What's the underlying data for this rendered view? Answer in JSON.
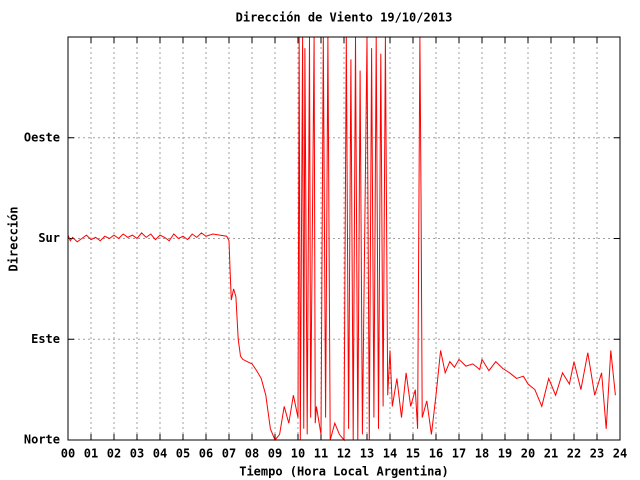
{
  "chart_data": {
    "type": "line",
    "title": "Dirección de Viento 19/10/2013",
    "xlabel": "Tiempo (Hora Local Argentina)",
    "ylabel": "Dirección",
    "xlim": [
      0,
      24
    ],
    "ylim": [
      0,
      360
    ],
    "xticks": [
      {
        "value": 0,
        "label": "00"
      },
      {
        "value": 1,
        "label": "01"
      },
      {
        "value": 2,
        "label": "02"
      },
      {
        "value": 3,
        "label": "03"
      },
      {
        "value": 4,
        "label": "04"
      },
      {
        "value": 5,
        "label": "05"
      },
      {
        "value": 6,
        "label": "06"
      },
      {
        "value": 7,
        "label": "07"
      },
      {
        "value": 8,
        "label": "08"
      },
      {
        "value": 9,
        "label": "09"
      },
      10,
      11,
      12,
      13,
      14,
      15,
      16,
      17,
      18,
      19,
      20,
      21,
      22,
      23,
      24
    ],
    "yticks": [
      {
        "value": 0,
        "label": "Norte"
      },
      {
        "value": 90,
        "label": "Este"
      },
      {
        "value": 180,
        "label": "Sur"
      },
      {
        "value": 270,
        "label": "Oeste"
      }
    ],
    "grid": true,
    "series": [
      {
        "color": "#ff0000",
        "x": [
          0.0,
          0.1,
          0.2,
          0.4,
          0.6,
          0.8,
          1.0,
          1.2,
          1.4,
          1.6,
          1.8,
          2.0,
          2.2,
          2.4,
          2.6,
          2.8,
          3.0,
          3.2,
          3.4,
          3.6,
          3.8,
          4.0,
          4.2,
          4.4,
          4.6,
          4.8,
          5.0,
          5.2,
          5.4,
          5.6,
          5.8,
          6.0,
          6.3,
          6.6,
          6.9,
          7.0,
          7.05,
          7.1,
          7.2,
          7.3,
          7.4,
          7.5,
          7.6,
          7.8,
          8.0,
          8.2,
          8.4,
          8.6,
          8.8,
          9.0,
          9.2,
          9.4,
          9.6,
          9.8,
          10.0,
          10.05,
          10.1,
          10.2,
          10.25,
          10.3,
          10.4,
          10.5,
          10.55,
          10.7,
          10.75,
          10.8,
          11.0,
          11.1,
          11.2,
          11.3,
          11.4,
          11.6,
          11.8,
          12.0,
          12.1,
          12.2,
          12.3,
          12.4,
          12.5,
          12.6,
          12.7,
          12.8,
          13.0,
          13.1,
          13.2,
          13.3,
          13.4,
          13.5,
          13.6,
          13.7,
          13.8,
          13.9,
          14.0,
          14.1,
          14.3,
          14.5,
          14.7,
          14.9,
          15.1,
          15.2,
          15.3,
          15.35,
          15.4,
          15.6,
          15.8,
          16.0,
          16.2,
          16.4,
          16.6,
          16.8,
          17.0,
          17.3,
          17.6,
          17.9,
          18.0,
          18.3,
          18.6,
          18.9,
          19.2,
          19.5,
          19.8,
          20.0,
          20.3,
          20.6,
          20.9,
          21.2,
          21.5,
          21.8,
          22.0,
          22.3,
          22.6,
          22.9,
          23.2,
          23.4,
          23.6,
          23.8
        ],
        "values": [
          183,
          178,
          181,
          177,
          180,
          183,
          179,
          181,
          178,
          182,
          180,
          183,
          180,
          184,
          181,
          183,
          180,
          185,
          181,
          184,
          179,
          183,
          181,
          178,
          184,
          180,
          182,
          179,
          184,
          181,
          185,
          182,
          184,
          183,
          182,
          178,
          150,
          125,
          135,
          128,
          90,
          75,
          72,
          70,
          68,
          62,
          55,
          40,
          10,
          0,
          5,
          30,
          15,
          40,
          20,
          360,
          0,
          360,
          10,
          350,
          5,
          360,
          20,
          360,
          15,
          30,
          5,
          360,
          20,
          360,
          0,
          15,
          5,
          0,
          360,
          10,
          340,
          0,
          360,
          0,
          330,
          5,
          360,
          0,
          350,
          20,
          360,
          10,
          345,
          30,
          360,
          40,
          80,
          30,
          55,
          20,
          60,
          30,
          45,
          10,
          360,
          215,
          20,
          35,
          5,
          40,
          80,
          60,
          70,
          65,
          72,
          66,
          68,
          63,
          72,
          62,
          70,
          64,
          60,
          55,
          57,
          50,
          45,
          30,
          55,
          40,
          60,
          50,
          70,
          45,
          78,
          40,
          60,
          10,
          80,
          40
        ]
      }
    ]
  }
}
